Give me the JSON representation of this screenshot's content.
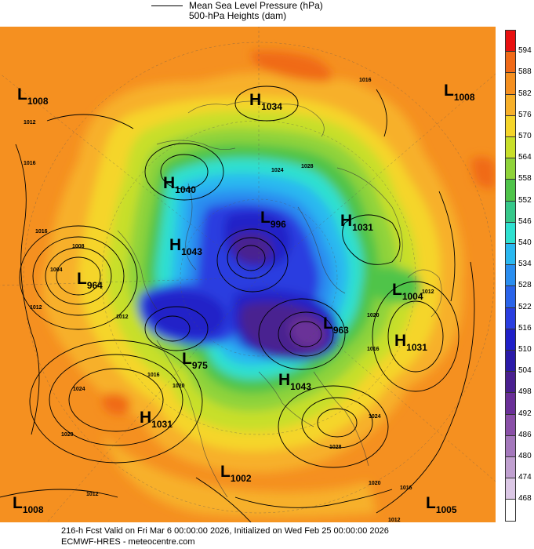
{
  "legend": {
    "line1": "Mean Sea Level Pressure (hPa)",
    "line2": "500-hPa Heights (dam)"
  },
  "footer": {
    "line1": "216-h Fcst Valid on Fri Mar  6 00:00:00 2026, Initialized on Wed Feb 25 00:00:00 2026",
    "line2": "ECMWF-HRES  - meteocentre.com"
  },
  "colorbar": {
    "levels": [
      {
        "label": "594",
        "color": "#e81010"
      },
      {
        "label": "588",
        "color": "#f06a18"
      },
      {
        "label": "582",
        "color": "#f59020"
      },
      {
        "label": "576",
        "color": "#f7b02a"
      },
      {
        "label": "570",
        "color": "#f5d52a"
      },
      {
        "label": "564",
        "color": "#c8df2a"
      },
      {
        "label": "558",
        "color": "#8fd33a"
      },
      {
        "label": "552",
        "color": "#4fc44a"
      },
      {
        "label": "546",
        "color": "#36c88a"
      },
      {
        "label": "540",
        "color": "#2ee0d0"
      },
      {
        "label": "534",
        "color": "#2ab8f0"
      },
      {
        "label": "528",
        "color": "#2a8ef0"
      },
      {
        "label": "522",
        "color": "#2a64ea"
      },
      {
        "label": "516",
        "color": "#2a3ee0"
      },
      {
        "label": "510",
        "color": "#2020c8"
      },
      {
        "label": "504",
        "color": "#2a1aa8"
      },
      {
        "label": "498",
        "color": "#4a2090"
      },
      {
        "label": "492",
        "color": "#6a3098"
      },
      {
        "label": "486",
        "color": "#8a50a8"
      },
      {
        "label": "480",
        "color": "#a478bc"
      },
      {
        "label": "474",
        "color": "#c0a0d0"
      },
      {
        "label": "468",
        "color": "#dcc8e6"
      },
      {
        "label": "",
        "color": "#ffffff"
      }
    ]
  },
  "pressure_centers": [
    {
      "type": "L",
      "value": "1008"
    },
    {
      "type": "H",
      "value": "1034"
    },
    {
      "type": "L",
      "value": "1008"
    },
    {
      "type": "H",
      "value": "1040"
    },
    {
      "type": "L",
      "value": "996"
    },
    {
      "type": "H",
      "value": "1031"
    },
    {
      "type": "H",
      "value": "1043"
    },
    {
      "type": "L",
      "value": "964"
    },
    {
      "type": "L",
      "value": "1004"
    },
    {
      "type": "L",
      "value": "963"
    },
    {
      "type": "H",
      "value": "1031"
    },
    {
      "type": "L",
      "value": "975"
    },
    {
      "type": "H",
      "value": "1043"
    },
    {
      "type": "H",
      "value": "1031"
    },
    {
      "type": "L",
      "value": "1002"
    },
    {
      "type": "L",
      "value": "1008"
    },
    {
      "type": "L",
      "value": "1005"
    }
  ],
  "isobar_labels": [
    "1016",
    "1012",
    "1016",
    "1024",
    "1028",
    "1016",
    "1008",
    "1004",
    "1012",
    "1012",
    "1024",
    "1020",
    "1012",
    "1020",
    "1016",
    "1012",
    "1028",
    "1024",
    "1020",
    "1016",
    "1012",
    "1016",
    "1020"
  ]
}
